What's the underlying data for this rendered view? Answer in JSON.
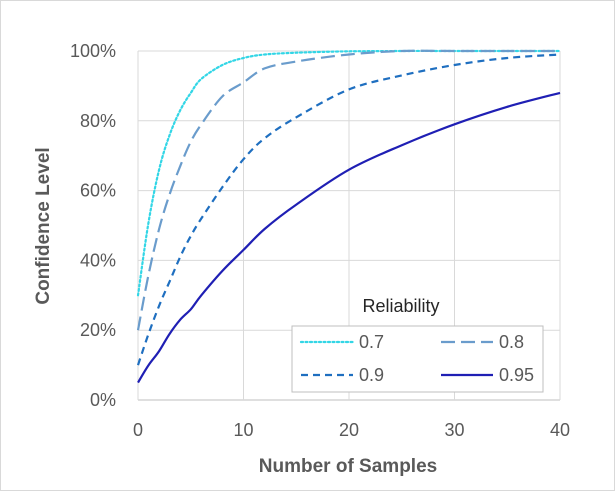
{
  "chart_data": {
    "type": "line",
    "title": "",
    "xlabel": "Number of Samples",
    "ylabel": "Confidence Level",
    "xlim": [
      0,
      40
    ],
    "ylim": [
      0,
      1
    ],
    "x_ticks": [
      "0",
      "10",
      "20",
      "30",
      "40"
    ],
    "y_ticks": [
      "0%",
      "20%",
      "40%",
      "60%",
      "80%",
      "100%"
    ],
    "grid": "on",
    "legend": {
      "title": "Reliability",
      "placement": "bottom-right",
      "layout": "2 columns"
    },
    "x": [
      0,
      1,
      2,
      3,
      4,
      5,
      6,
      8,
      10,
      12,
      15,
      20,
      25,
      30,
      35,
      40
    ],
    "series": [
      {
        "name": "0.7",
        "color": "#33d6e6",
        "style": "dotted",
        "values": [
          0.3,
          0.51,
          0.66,
          0.76,
          0.83,
          0.88,
          0.92,
          0.96,
          0.98,
          0.99,
          0.995,
          0.999,
          1.0,
          1.0,
          1.0,
          1.0
        ]
      },
      {
        "name": "0.8",
        "color": "#6a9ccc",
        "style": "long-dash",
        "values": [
          0.2,
          0.36,
          0.49,
          0.59,
          0.67,
          0.74,
          0.79,
          0.87,
          0.91,
          0.95,
          0.97,
          0.99,
          1.0,
          1.0,
          1.0,
          1.0
        ]
      },
      {
        "name": "0.9",
        "color": "#1f6fc0",
        "style": "dashed",
        "values": [
          0.1,
          0.19,
          0.27,
          0.34,
          0.41,
          0.47,
          0.52,
          0.61,
          0.69,
          0.75,
          0.81,
          0.89,
          0.93,
          0.96,
          0.98,
          0.99
        ]
      },
      {
        "name": "0.95",
        "color": "#1f1fb4",
        "style": "solid",
        "values": [
          0.05,
          0.1,
          0.14,
          0.19,
          0.23,
          0.26,
          0.3,
          0.37,
          0.43,
          0.49,
          0.56,
          0.66,
          0.73,
          0.79,
          0.84,
          0.88
        ]
      }
    ]
  }
}
